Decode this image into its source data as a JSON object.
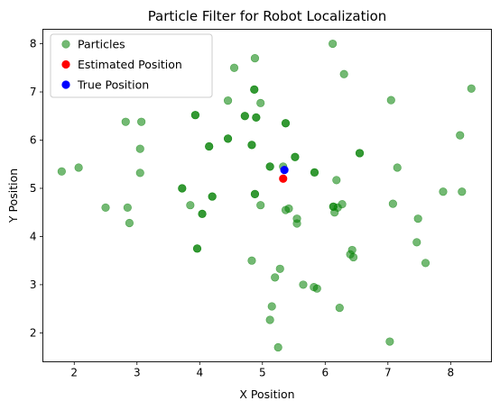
{
  "chart_data": {
    "type": "scatter",
    "title": "Particle Filter for Robot Localization",
    "xlabel": "X Position",
    "ylabel": "Y Position",
    "xlim": [
      1.5,
      8.65
    ],
    "ylim": [
      1.4,
      8.3
    ],
    "xticks": [
      2,
      3,
      4,
      5,
      6,
      7,
      8
    ],
    "yticks": [
      2,
      3,
      4,
      5,
      6,
      7,
      8
    ],
    "grid": false,
    "legend_position": "top-left",
    "series": [
      {
        "name": "Particles",
        "color": "#008000",
        "alpha": 0.55,
        "points": [
          [
            1.8,
            5.35
          ],
          [
            2.07,
            5.43
          ],
          [
            2.5,
            4.6
          ],
          [
            2.82,
            6.38
          ],
          [
            2.85,
            4.6
          ],
          [
            2.88,
            4.28
          ],
          [
            3.05,
            5.82
          ],
          [
            3.07,
            6.38
          ],
          [
            3.05,
            5.32
          ],
          [
            3.72,
            5.0
          ],
          [
            3.72,
            5.0
          ],
          [
            3.85,
            4.65
          ],
          [
            3.93,
            6.52
          ],
          [
            3.93,
            6.52
          ],
          [
            3.96,
            3.75
          ],
          [
            3.96,
            3.75
          ],
          [
            4.04,
            4.47
          ],
          [
            4.04,
            4.47
          ],
          [
            4.15,
            5.87
          ],
          [
            4.15,
            5.87
          ],
          [
            4.2,
            4.83
          ],
          [
            4.2,
            4.83
          ],
          [
            4.45,
            6.82
          ],
          [
            4.45,
            6.03
          ],
          [
            4.45,
            6.03
          ],
          [
            4.55,
            7.5
          ],
          [
            4.72,
            6.5
          ],
          [
            4.72,
            6.5
          ],
          [
            4.83,
            5.9
          ],
          [
            4.83,
            5.9
          ],
          [
            4.83,
            3.5
          ],
          [
            4.87,
            7.05
          ],
          [
            4.87,
            7.05
          ],
          [
            4.88,
            7.7
          ],
          [
            4.9,
            6.47
          ],
          [
            4.9,
            6.47
          ],
          [
            4.88,
            4.88
          ],
          [
            4.88,
            4.88
          ],
          [
            4.97,
            6.77
          ],
          [
            4.97,
            4.65
          ],
          [
            5.12,
            5.45
          ],
          [
            5.12,
            5.45
          ],
          [
            5.12,
            2.27
          ],
          [
            5.15,
            2.55
          ],
          [
            5.2,
            3.15
          ],
          [
            5.25,
            1.7
          ],
          [
            5.28,
            3.33
          ],
          [
            5.33,
            5.45
          ],
          [
            5.37,
            6.35
          ],
          [
            5.37,
            6.35
          ],
          [
            5.37,
            4.55
          ],
          [
            5.42,
            4.58
          ],
          [
            5.52,
            5.65
          ],
          [
            5.52,
            5.65
          ],
          [
            5.55,
            4.37
          ],
          [
            5.55,
            4.27
          ],
          [
            5.65,
            3.0
          ],
          [
            5.82,
            2.95
          ],
          [
            5.83,
            5.33
          ],
          [
            5.83,
            5.33
          ],
          [
            5.87,
            2.92
          ],
          [
            6.12,
            8.0
          ],
          [
            6.13,
            4.62
          ],
          [
            6.13,
            4.62
          ],
          [
            6.15,
            4.5
          ],
          [
            6.18,
            5.17
          ],
          [
            6.2,
            4.6
          ],
          [
            6.23,
            2.52
          ],
          [
            6.27,
            4.67
          ],
          [
            6.3,
            7.37
          ],
          [
            6.4,
            3.63
          ],
          [
            6.43,
            3.72
          ],
          [
            6.45,
            3.57
          ],
          [
            6.55,
            5.73
          ],
          [
            6.55,
            5.73
          ],
          [
            7.03,
            1.82
          ],
          [
            7.05,
            6.83
          ],
          [
            7.08,
            4.68
          ],
          [
            7.15,
            5.43
          ],
          [
            7.46,
            3.88
          ],
          [
            7.48,
            4.37
          ],
          [
            7.6,
            3.45
          ],
          [
            7.88,
            4.93
          ],
          [
            8.15,
            6.1
          ],
          [
            8.18,
            4.93
          ],
          [
            8.33,
            7.07
          ]
        ]
      },
      {
        "name": "Estimated Position",
        "color": "#ff0000",
        "alpha": 1,
        "points": [
          [
            5.33,
            5.2
          ]
        ]
      },
      {
        "name": "True Position",
        "color": "#0000ff",
        "alpha": 1,
        "points": [
          [
            5.35,
            5.38
          ]
        ]
      }
    ]
  }
}
